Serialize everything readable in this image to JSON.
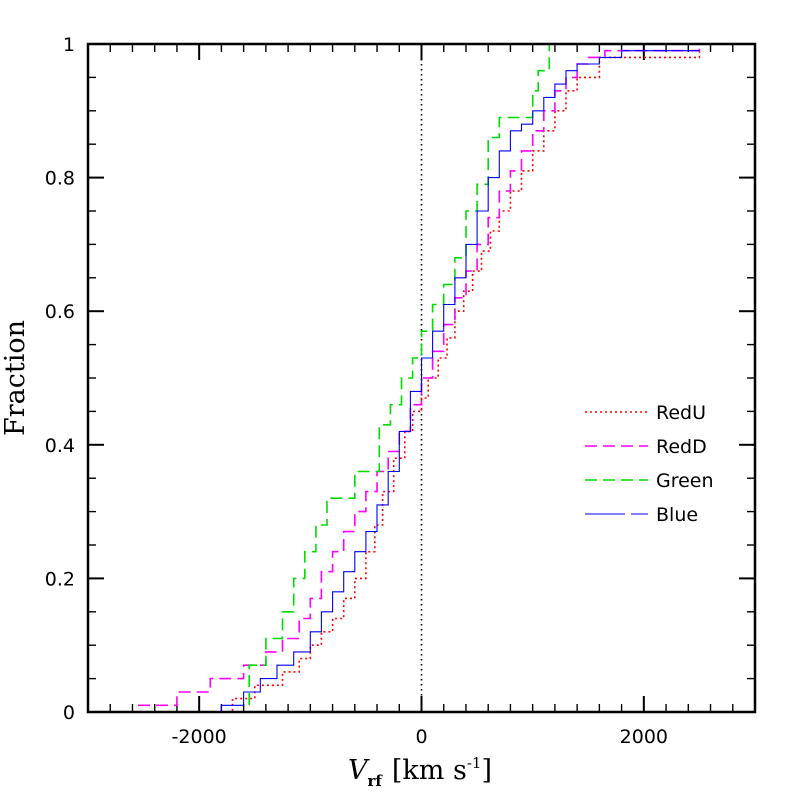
{
  "chart_data": {
    "type": "line",
    "subtype": "step-cdf",
    "xlabel_main": "V",
    "xlabel_sub": "rf",
    "xlabel_units": "[km s",
    "xlabel_sup": "-1",
    "xlabel_close": "]",
    "ylabel": "Fraction",
    "xlim": [
      -3000,
      3000
    ],
    "ylim": [
      0,
      1
    ],
    "x_ticks": [
      {
        "value": -2000,
        "label": "-2000"
      },
      {
        "value": 0,
        "label": "0"
      },
      {
        "value": 2000,
        "label": "2000"
      }
    ],
    "x_minor_step": 200,
    "y_ticks": [
      {
        "value": 0,
        "label": "0"
      },
      {
        "value": 0.2,
        "label": "0.2"
      },
      {
        "value": 0.4,
        "label": "0.4"
      },
      {
        "value": 0.6,
        "label": "0.6"
      },
      {
        "value": 0.8,
        "label": "0.8"
      },
      {
        "value": 1,
        "label": "1"
      }
    ],
    "y_minor_step": 0.05,
    "reference_line": {
      "x": 0,
      "style": "dotted",
      "color": "#000000"
    },
    "grid": false,
    "legend_position": "right-middle",
    "series": [
      {
        "name": "RedU",
        "color": "#ff0000",
        "dash": "2,3",
        "width": 1.6,
        "x": [
          -2050,
          -1700,
          -1500,
          -1250,
          -1100,
          -1000,
          -900,
          -800,
          -700,
          -600,
          -500,
          -420,
          -350,
          -250,
          -150,
          -80,
          0,
          60,
          150,
          230,
          300,
          380,
          460,
          540,
          620,
          700,
          800,
          900,
          1000,
          1100,
          1200,
          1300,
          1400,
          1600,
          2500
        ],
        "y": [
          0,
          0.02,
          0.04,
          0.06,
          0.08,
          0.1,
          0.12,
          0.14,
          0.17,
          0.2,
          0.24,
          0.28,
          0.33,
          0.38,
          0.42,
          0.45,
          0.47,
          0.5,
          0.53,
          0.56,
          0.6,
          0.63,
          0.66,
          0.69,
          0.72,
          0.75,
          0.78,
          0.81,
          0.84,
          0.87,
          0.9,
          0.93,
          0.95,
          0.98,
          0.99
        ]
      },
      {
        "name": "RedD",
        "color": "#ff00ff",
        "dash": "12,6",
        "width": 1.6,
        "x": [
          -2550,
          -2200,
          -1900,
          -1600,
          -1400,
          -1250,
          -1100,
          -1000,
          -900,
          -800,
          -700,
          -600,
          -500,
          -400,
          -300,
          -200,
          -100,
          0,
          100,
          200,
          300,
          400,
          500,
          600,
          700,
          800,
          900,
          1000,
          1100,
          1200,
          1300,
          1400,
          1500,
          1650,
          2500
        ],
        "y": [
          0.01,
          0.03,
          0.05,
          0.07,
          0.09,
          0.11,
          0.14,
          0.17,
          0.21,
          0.24,
          0.27,
          0.3,
          0.33,
          0.36,
          0.39,
          0.42,
          0.46,
          0.5,
          0.54,
          0.58,
          0.62,
          0.66,
          0.7,
          0.74,
          0.78,
          0.81,
          0.84,
          0.87,
          0.9,
          0.93,
          0.95,
          0.97,
          0.98,
          0.99,
          1.0
        ]
      },
      {
        "name": "Green",
        "color": "#00dd00",
        "dash": "12,6",
        "width": 1.6,
        "x": [
          -1650,
          -1550,
          -1400,
          -1250,
          -1150,
          -1050,
          -950,
          -850,
          -700,
          -600,
          -500,
          -380,
          -280,
          -180,
          -80,
          0,
          100,
          200,
          300,
          400,
          500,
          600,
          700,
          800,
          900,
          1000,
          1050,
          1100,
          1150
        ],
        "y": [
          0,
          0.07,
          0.11,
          0.15,
          0.2,
          0.24,
          0.28,
          0.32,
          0.32,
          0.36,
          0.36,
          0.43,
          0.46,
          0.5,
          0.53,
          0.57,
          0.61,
          0.64,
          0.68,
          0.75,
          0.79,
          0.86,
          0.89,
          0.89,
          0.89,
          0.93,
          0.96,
          0.96,
          1.0
        ]
      },
      {
        "name": "Blue",
        "color": "#0000ff",
        "dash": "",
        "width": 1.1,
        "x": [
          -2050,
          -1800,
          -1600,
          -1450,
          -1300,
          -1150,
          -1000,
          -900,
          -800,
          -700,
          -600,
          -500,
          -400,
          -300,
          -200,
          -100,
          0,
          100,
          200,
          300,
          400,
          500,
          600,
          700,
          800,
          900,
          1000,
          1100,
          1200,
          1300,
          1400,
          1600,
          1800,
          2000,
          2500
        ],
        "y": [
          0,
          0.01,
          0.03,
          0.05,
          0.07,
          0.09,
          0.12,
          0.15,
          0.18,
          0.21,
          0.24,
          0.27,
          0.31,
          0.36,
          0.42,
          0.48,
          0.53,
          0.57,
          0.61,
          0.65,
          0.7,
          0.75,
          0.8,
          0.84,
          0.87,
          0.88,
          0.9,
          0.92,
          0.94,
          0.96,
          0.97,
          0.98,
          0.99,
          0.99,
          0.99
        ]
      }
    ]
  }
}
